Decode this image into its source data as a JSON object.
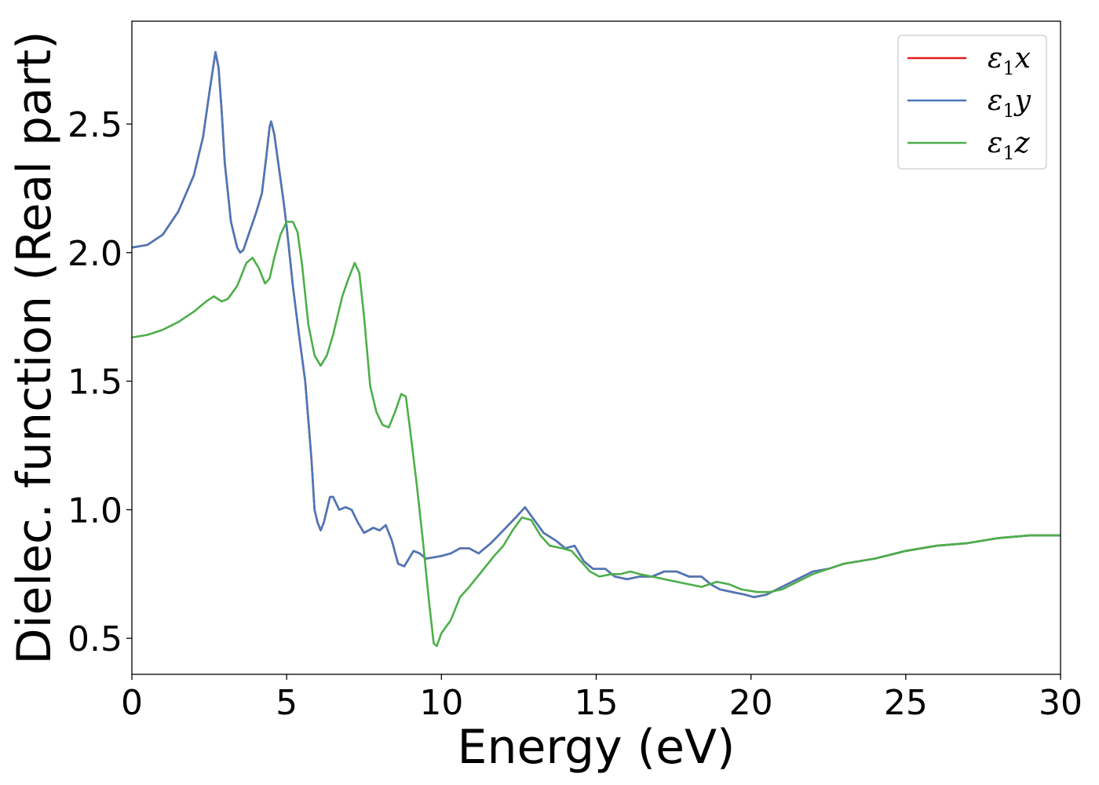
{
  "chart_data": {
    "type": "line",
    "title": "",
    "xlabel": "Energy (eV)",
    "ylabel": "Dielec. function (Real part)",
    "xlim": [
      0,
      30
    ],
    "ylim": [
      0.36,
      2.9
    ],
    "xticks": [
      0,
      5,
      10,
      15,
      20,
      25,
      30
    ],
    "xtick_labels": [
      "0",
      "5",
      "10",
      "15",
      "20",
      "25",
      "30"
    ],
    "yticks": [
      0.5,
      1.0,
      1.5,
      2.0,
      2.5
    ],
    "ytick_labels": [
      "0.5",
      "1.0",
      "1.5",
      "2.0",
      "2.5"
    ],
    "grid": false,
    "legend_position": "top-right",
    "series": [
      {
        "name": "ε₁x",
        "legend_main": "ε",
        "legend_sub": "1",
        "legend_suffix": "x",
        "color": "#e41a1c",
        "points": [
          [
            0,
            2.02
          ],
          [
            0.5,
            2.03
          ],
          [
            1,
            2.07
          ],
          [
            1.5,
            2.16
          ],
          [
            2,
            2.3
          ],
          [
            2.3,
            2.45
          ],
          [
            2.5,
            2.62
          ],
          [
            2.65,
            2.74
          ],
          [
            2.7,
            2.78
          ],
          [
            2.8,
            2.72
          ],
          [
            2.9,
            2.55
          ],
          [
            3,
            2.35
          ],
          [
            3.2,
            2.12
          ],
          [
            3.4,
            2.02
          ],
          [
            3.5,
            2.0
          ],
          [
            3.6,
            2.01
          ],
          [
            3.8,
            2.08
          ],
          [
            4.0,
            2.15
          ],
          [
            4.2,
            2.23
          ],
          [
            4.35,
            2.38
          ],
          [
            4.45,
            2.49
          ],
          [
            4.5,
            2.51
          ],
          [
            4.6,
            2.46
          ],
          [
            4.75,
            2.33
          ],
          [
            4.9,
            2.2
          ],
          [
            5.0,
            2.1
          ],
          [
            5.2,
            1.87
          ],
          [
            5.4,
            1.68
          ],
          [
            5.6,
            1.5
          ],
          [
            5.8,
            1.2
          ],
          [
            5.9,
            1.0
          ],
          [
            6.0,
            0.95
          ],
          [
            6.1,
            0.92
          ],
          [
            6.2,
            0.95
          ],
          [
            6.4,
            1.05
          ],
          [
            6.5,
            1.05
          ],
          [
            6.7,
            1.0
          ],
          [
            6.9,
            1.01
          ],
          [
            7.1,
            1.0
          ],
          [
            7.3,
            0.95
          ],
          [
            7.5,
            0.91
          ],
          [
            7.8,
            0.93
          ],
          [
            8.0,
            0.92
          ],
          [
            8.2,
            0.94
          ],
          [
            8.4,
            0.88
          ],
          [
            8.6,
            0.79
          ],
          [
            8.8,
            0.78
          ],
          [
            9.1,
            0.84
          ],
          [
            9.3,
            0.83
          ],
          [
            9.5,
            0.81
          ],
          [
            10.0,
            0.82
          ],
          [
            10.3,
            0.83
          ],
          [
            10.6,
            0.85
          ],
          [
            10.9,
            0.85
          ],
          [
            11.2,
            0.83
          ],
          [
            11.6,
            0.87
          ],
          [
            12.0,
            0.92
          ],
          [
            12.4,
            0.97
          ],
          [
            12.7,
            1.01
          ],
          [
            13.0,
            0.96
          ],
          [
            13.3,
            0.91
          ],
          [
            13.7,
            0.88
          ],
          [
            14.0,
            0.85
          ],
          [
            14.3,
            0.86
          ],
          [
            14.6,
            0.8
          ],
          [
            14.9,
            0.77
          ],
          [
            15.3,
            0.77
          ],
          [
            15.6,
            0.74
          ],
          [
            16.0,
            0.73
          ],
          [
            16.4,
            0.74
          ],
          [
            16.8,
            0.74
          ],
          [
            17.2,
            0.76
          ],
          [
            17.6,
            0.76
          ],
          [
            18.0,
            0.74
          ],
          [
            18.4,
            0.74
          ],
          [
            18.7,
            0.71
          ],
          [
            19.0,
            0.69
          ],
          [
            19.4,
            0.68
          ],
          [
            19.8,
            0.67
          ],
          [
            20.1,
            0.66
          ],
          [
            20.5,
            0.67
          ],
          [
            21.0,
            0.7
          ],
          [
            21.5,
            0.73
          ],
          [
            22.0,
            0.76
          ],
          [
            22.5,
            0.77
          ],
          [
            23.0,
            0.79
          ],
          [
            24.0,
            0.81
          ],
          [
            25.0,
            0.84
          ],
          [
            26.0,
            0.86
          ],
          [
            27.0,
            0.87
          ],
          [
            28.0,
            0.89
          ],
          [
            29.0,
            0.9
          ],
          [
            30.0,
            0.9
          ]
        ]
      },
      {
        "name": "ε₁y",
        "legend_main": "ε",
        "legend_sub": "1",
        "legend_suffix": "y",
        "color": "#4a78b8",
        "points": [
          [
            0,
            2.02
          ],
          [
            0.5,
            2.03
          ],
          [
            1,
            2.07
          ],
          [
            1.5,
            2.16
          ],
          [
            2,
            2.3
          ],
          [
            2.3,
            2.45
          ],
          [
            2.5,
            2.62
          ],
          [
            2.65,
            2.74
          ],
          [
            2.7,
            2.78
          ],
          [
            2.8,
            2.72
          ],
          [
            2.9,
            2.55
          ],
          [
            3,
            2.35
          ],
          [
            3.2,
            2.12
          ],
          [
            3.4,
            2.02
          ],
          [
            3.5,
            2.0
          ],
          [
            3.6,
            2.01
          ],
          [
            3.8,
            2.08
          ],
          [
            4.0,
            2.15
          ],
          [
            4.2,
            2.23
          ],
          [
            4.35,
            2.38
          ],
          [
            4.45,
            2.49
          ],
          [
            4.5,
            2.51
          ],
          [
            4.6,
            2.46
          ],
          [
            4.75,
            2.33
          ],
          [
            4.9,
            2.2
          ],
          [
            5.0,
            2.1
          ],
          [
            5.2,
            1.87
          ],
          [
            5.4,
            1.68
          ],
          [
            5.6,
            1.5
          ],
          [
            5.8,
            1.2
          ],
          [
            5.9,
            1.0
          ],
          [
            6.0,
            0.95
          ],
          [
            6.1,
            0.92
          ],
          [
            6.2,
            0.95
          ],
          [
            6.4,
            1.05
          ],
          [
            6.5,
            1.05
          ],
          [
            6.7,
            1.0
          ],
          [
            6.9,
            1.01
          ],
          [
            7.1,
            1.0
          ],
          [
            7.3,
            0.95
          ],
          [
            7.5,
            0.91
          ],
          [
            7.8,
            0.93
          ],
          [
            8.0,
            0.92
          ],
          [
            8.2,
            0.94
          ],
          [
            8.4,
            0.88
          ],
          [
            8.6,
            0.79
          ],
          [
            8.8,
            0.78
          ],
          [
            9.1,
            0.84
          ],
          [
            9.3,
            0.83
          ],
          [
            9.5,
            0.81
          ],
          [
            10.0,
            0.82
          ],
          [
            10.3,
            0.83
          ],
          [
            10.6,
            0.85
          ],
          [
            10.9,
            0.85
          ],
          [
            11.2,
            0.83
          ],
          [
            11.6,
            0.87
          ],
          [
            12.0,
            0.92
          ],
          [
            12.4,
            0.97
          ],
          [
            12.7,
            1.01
          ],
          [
            13.0,
            0.96
          ],
          [
            13.3,
            0.91
          ],
          [
            13.7,
            0.88
          ],
          [
            14.0,
            0.85
          ],
          [
            14.3,
            0.86
          ],
          [
            14.6,
            0.8
          ],
          [
            14.9,
            0.77
          ],
          [
            15.3,
            0.77
          ],
          [
            15.6,
            0.74
          ],
          [
            16.0,
            0.73
          ],
          [
            16.4,
            0.74
          ],
          [
            16.8,
            0.74
          ],
          [
            17.2,
            0.76
          ],
          [
            17.6,
            0.76
          ],
          [
            18.0,
            0.74
          ],
          [
            18.4,
            0.74
          ],
          [
            18.7,
            0.71
          ],
          [
            19.0,
            0.69
          ],
          [
            19.4,
            0.68
          ],
          [
            19.8,
            0.67
          ],
          [
            20.1,
            0.66
          ],
          [
            20.5,
            0.67
          ],
          [
            21.0,
            0.7
          ],
          [
            21.5,
            0.73
          ],
          [
            22.0,
            0.76
          ],
          [
            22.5,
            0.77
          ],
          [
            23.0,
            0.79
          ],
          [
            24.0,
            0.81
          ],
          [
            25.0,
            0.84
          ],
          [
            26.0,
            0.86
          ],
          [
            27.0,
            0.87
          ],
          [
            28.0,
            0.89
          ],
          [
            29.0,
            0.9
          ],
          [
            30.0,
            0.9
          ]
        ]
      },
      {
        "name": "ε₁z",
        "legend_main": "ε",
        "legend_sub": "1",
        "legend_suffix": "z",
        "color": "#4daf4a",
        "points": [
          [
            0,
            1.67
          ],
          [
            0.5,
            1.68
          ],
          [
            1.0,
            1.7
          ],
          [
            1.5,
            1.73
          ],
          [
            2.0,
            1.77
          ],
          [
            2.4,
            1.81
          ],
          [
            2.65,
            1.83
          ],
          [
            2.9,
            1.81
          ],
          [
            3.1,
            1.82
          ],
          [
            3.4,
            1.87
          ],
          [
            3.7,
            1.96
          ],
          [
            3.9,
            1.98
          ],
          [
            4.1,
            1.94
          ],
          [
            4.3,
            1.88
          ],
          [
            4.45,
            1.9
          ],
          [
            4.6,
            1.98
          ],
          [
            4.8,
            2.07
          ],
          [
            5.0,
            2.12
          ],
          [
            5.2,
            2.12
          ],
          [
            5.35,
            2.08
          ],
          [
            5.5,
            1.95
          ],
          [
            5.7,
            1.72
          ],
          [
            5.9,
            1.6
          ],
          [
            6.1,
            1.56
          ],
          [
            6.3,
            1.6
          ],
          [
            6.5,
            1.68
          ],
          [
            6.8,
            1.83
          ],
          [
            7.0,
            1.9
          ],
          [
            7.2,
            1.96
          ],
          [
            7.35,
            1.92
          ],
          [
            7.5,
            1.75
          ],
          [
            7.7,
            1.48
          ],
          [
            7.9,
            1.38
          ],
          [
            8.1,
            1.33
          ],
          [
            8.3,
            1.32
          ],
          [
            8.5,
            1.38
          ],
          [
            8.7,
            1.45
          ],
          [
            8.85,
            1.44
          ],
          [
            9.0,
            1.3
          ],
          [
            9.2,
            1.1
          ],
          [
            9.4,
            0.88
          ],
          [
            9.6,
            0.64
          ],
          [
            9.75,
            0.48
          ],
          [
            9.85,
            0.47
          ],
          [
            10.0,
            0.52
          ],
          [
            10.3,
            0.57
          ],
          [
            10.6,
            0.66
          ],
          [
            10.9,
            0.7
          ],
          [
            11.3,
            0.76
          ],
          [
            11.7,
            0.82
          ],
          [
            12.0,
            0.86
          ],
          [
            12.3,
            0.92
          ],
          [
            12.6,
            0.97
          ],
          [
            12.9,
            0.96
          ],
          [
            13.2,
            0.9
          ],
          [
            13.5,
            0.86
          ],
          [
            13.9,
            0.85
          ],
          [
            14.2,
            0.84
          ],
          [
            14.5,
            0.8
          ],
          [
            14.8,
            0.76
          ],
          [
            15.1,
            0.74
          ],
          [
            15.5,
            0.75
          ],
          [
            15.8,
            0.75
          ],
          [
            16.1,
            0.76
          ],
          [
            16.4,
            0.75
          ],
          [
            16.8,
            0.74
          ],
          [
            17.2,
            0.73
          ],
          [
            17.6,
            0.72
          ],
          [
            18.0,
            0.71
          ],
          [
            18.4,
            0.7
          ],
          [
            18.9,
            0.72
          ],
          [
            19.3,
            0.71
          ],
          [
            19.7,
            0.69
          ],
          [
            20.2,
            0.68
          ],
          [
            20.6,
            0.68
          ],
          [
            21.0,
            0.69
          ],
          [
            21.5,
            0.72
          ],
          [
            22.0,
            0.75
          ],
          [
            22.5,
            0.77
          ],
          [
            23.0,
            0.79
          ],
          [
            24.0,
            0.81
          ],
          [
            25.0,
            0.84
          ],
          [
            26.0,
            0.86
          ],
          [
            27.0,
            0.87
          ],
          [
            28.0,
            0.89
          ],
          [
            29.0,
            0.9
          ],
          [
            30.0,
            0.9
          ]
        ]
      }
    ]
  }
}
